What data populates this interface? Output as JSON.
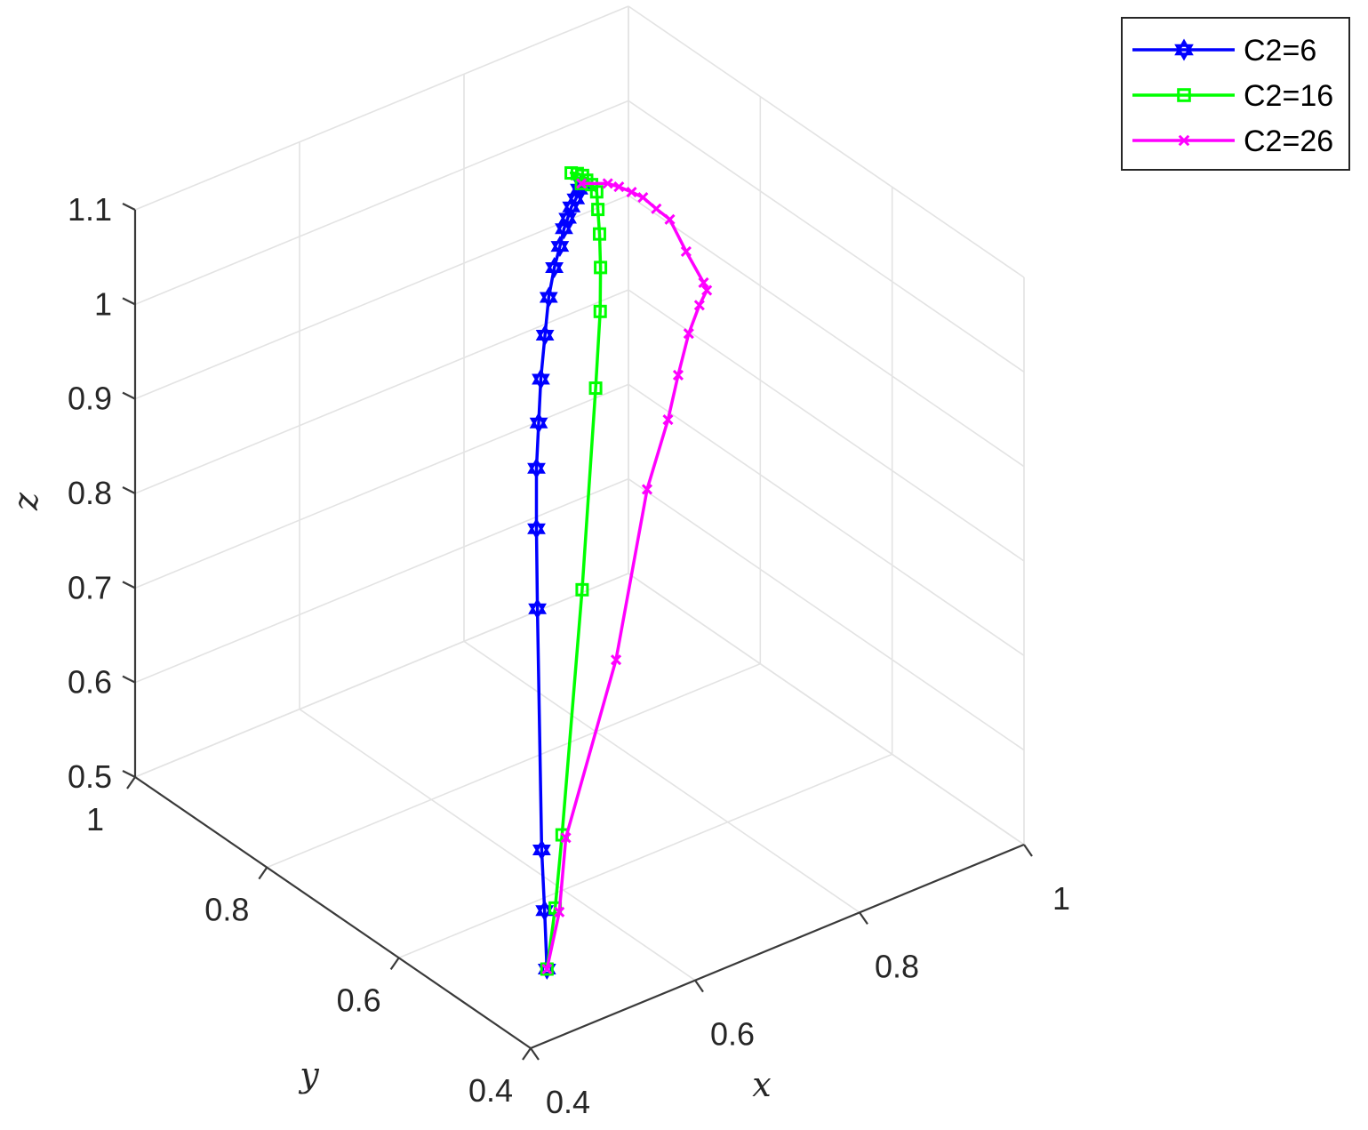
{
  "chart_data": {
    "type": "line3d",
    "title": "",
    "xlabel": "x",
    "ylabel": "y",
    "zlabel": "z",
    "xlim": [
      0.4,
      1
    ],
    "ylim": [
      0.4,
      1
    ],
    "zlim": [
      0.5,
      1.1
    ],
    "xticks": [
      "0.4",
      "0.6",
      "0.8",
      "1"
    ],
    "yticks": [
      "0.4",
      "0.6",
      "0.8",
      "1"
    ],
    "zticks": [
      "0.5",
      "0.6",
      "0.7",
      "0.8",
      "0.9",
      "1",
      "1.1"
    ],
    "grid": true,
    "legend_position": "top-right",
    "series": [
      {
        "name": "C2=6",
        "color": "#0000ff",
        "marker": "hexagram",
        "points": [
          [
            0.5,
            0.5,
            0.5
          ],
          [
            0.498,
            0.501,
            0.562
          ],
          [
            0.496,
            0.503,
            0.626
          ],
          [
            0.494,
            0.507,
            0.88
          ],
          [
            0.496,
            0.511,
            0.962
          ],
          [
            0.5,
            0.516,
            1.022
          ],
          [
            0.506,
            0.52,
            1.066
          ],
          [
            0.511,
            0.523,
            1.109
          ],
          [
            0.52,
            0.528,
            1.15
          ],
          [
            0.527,
            0.531,
            1.186
          ],
          [
            0.537,
            0.535,
            1.212
          ],
          [
            0.547,
            0.539,
            1.229
          ],
          [
            0.556,
            0.544,
            1.242
          ],
          [
            0.562,
            0.546,
            1.25
          ],
          [
            0.569,
            0.549,
            1.258
          ],
          [
            0.576,
            0.551,
            1.263
          ],
          [
            0.584,
            0.556,
            1.268
          ],
          [
            0.59,
            0.56,
            1.27
          ]
        ]
      },
      {
        "name": "C2=16",
        "color": "#00ff00",
        "marker": "square",
        "points": [
          [
            0.5,
            0.5,
            0.5
          ],
          [
            0.51,
            0.5,
            0.561
          ],
          [
            0.524,
            0.507,
            0.63
          ],
          [
            0.55,
            0.509,
            0.879
          ],
          [
            0.572,
            0.516,
            1.081
          ],
          [
            0.584,
            0.524,
            1.154
          ],
          [
            0.59,
            0.531,
            1.195
          ],
          [
            0.596,
            0.54,
            1.224
          ],
          [
            0.602,
            0.55,
            1.243
          ],
          [
            0.607,
            0.558,
            1.256
          ],
          [
            0.608,
            0.567,
            1.259
          ],
          [
            0.606,
            0.572,
            1.262
          ],
          [
            0.605,
            0.577,
            1.265
          ],
          [
            0.601,
            0.58,
            1.267
          ],
          [
            0.596,
            0.583,
            1.268
          ],
          [
            0.59,
            0.56,
            1.27
          ]
        ]
      },
      {
        "name": "C2=26",
        "color": "#ff00ff",
        "marker": "x",
        "points": [
          [
            0.5,
            0.5,
            0.5
          ],
          [
            0.515,
            0.5,
            0.555
          ],
          [
            0.531,
            0.51,
            0.623
          ],
          [
            0.584,
            0.5,
            0.797
          ],
          [
            0.633,
            0.514,
            0.953
          ],
          [
            0.66,
            0.516,
            1.016
          ],
          [
            0.67,
            0.513,
            1.061
          ],
          [
            0.678,
            0.507,
            1.105
          ],
          [
            0.683,
            0.497,
            1.138
          ],
          [
            0.68,
            0.482,
            1.162
          ],
          [
            0.664,
            0.467,
            1.183
          ],
          [
            0.658,
            0.486,
            1.209
          ],
          [
            0.655,
            0.507,
            1.234
          ],
          [
            0.645,
            0.515,
            1.245
          ],
          [
            0.636,
            0.524,
            1.256
          ],
          [
            0.627,
            0.53,
            1.262
          ],
          [
            0.618,
            0.538,
            1.267
          ],
          [
            0.61,
            0.545,
            1.27
          ],
          [
            0.59,
            0.56,
            1.27
          ]
        ]
      }
    ]
  }
}
